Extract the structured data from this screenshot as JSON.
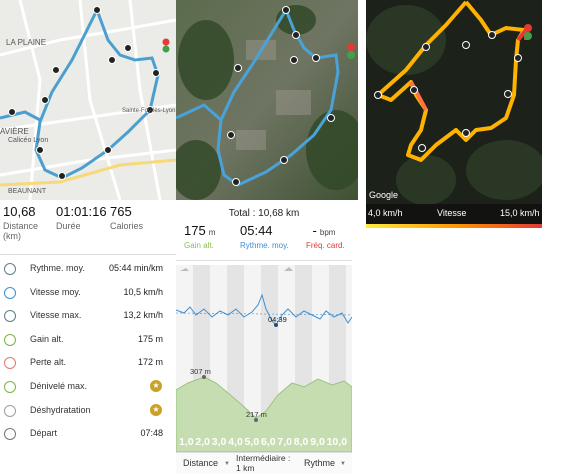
{
  "left": {
    "map_labels": [
      "LA PLAINE",
      "AVIÈRE",
      "Calicéo Lyon",
      "BEAUNANT",
      "Sainte-Foy-lès-Lyon"
    ],
    "summary": [
      {
        "value": "10,68",
        "label": "Distance (km)"
      },
      {
        "value": "01:01:16",
        "label": "Durée"
      },
      {
        "value": "765",
        "label": "Calories"
      }
    ],
    "stats": [
      {
        "label": "Rythme. moy.",
        "value": "05:44 min/km"
      },
      {
        "label": "Vitesse moy.",
        "value": "10,5 km/h"
      },
      {
        "label": "Vitesse max.",
        "value": "13,2 km/h"
      },
      {
        "label": "Gain alt.",
        "value": "175 m"
      },
      {
        "label": "Perte alt.",
        "value": "172 m"
      },
      {
        "label": "Dénivelé max."
      },
      {
        "label": "Déshydratation"
      },
      {
        "label": "Départ",
        "value": "07:48"
      }
    ]
  },
  "middle": {
    "total": "Total : 10,68 km",
    "summary": [
      {
        "value": "175",
        "unit": "m",
        "label": "Gain alt.",
        "color": "#8bc34a"
      },
      {
        "value": "05:44",
        "unit": "",
        "label": "Rythme. moy.",
        "color": "#3d8fd1"
      },
      {
        "value": "-",
        "unit": "bpm",
        "label": "Fréq. card.",
        "color": "#e53935"
      }
    ],
    "chart": {
      "pace_label": "04:39",
      "elev_max": "307 m",
      "elev_min": "217 m",
      "x_labels": [
        "1,0",
        "2,0",
        "3,0",
        "4,0",
        "5,0",
        "6,0",
        "7,0",
        "8,0",
        "9,0",
        "10,0"
      ]
    },
    "toolbar": [
      "Distance",
      "Intermédiaire : 1 km",
      "Rythme"
    ]
  },
  "right": {
    "google": "Google",
    "legend": {
      "min": "4,0 km/h",
      "label": "Vitesse",
      "max": "15,0 km/h"
    }
  }
}
